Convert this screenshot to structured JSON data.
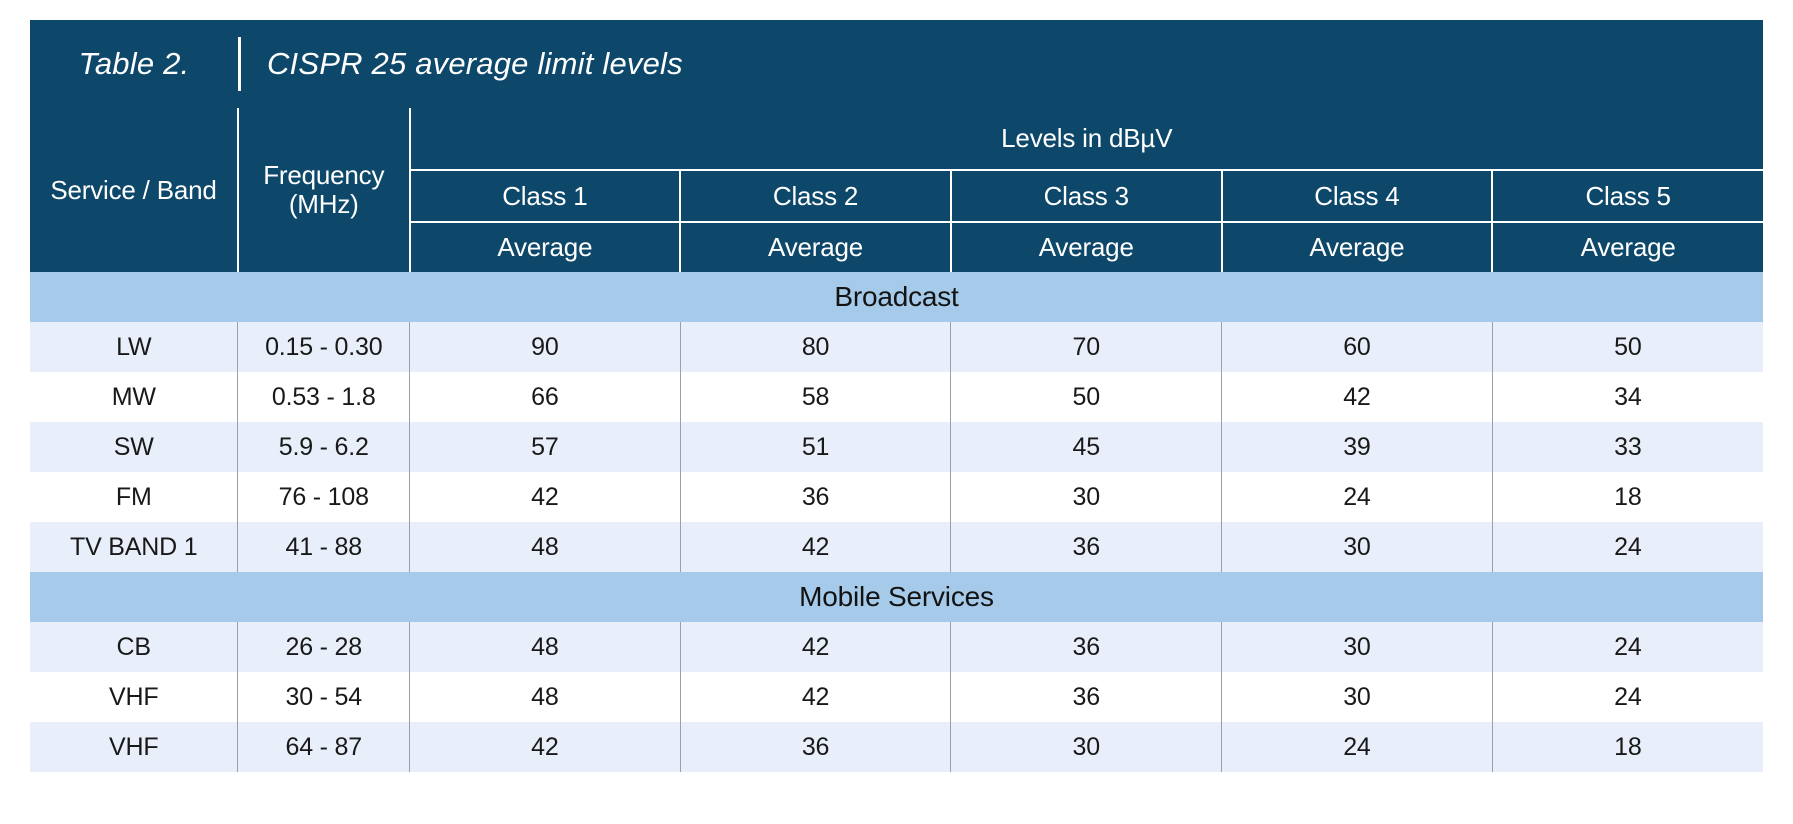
{
  "title": {
    "label": "Table 2.",
    "text": "CISPR 25 average limit levels"
  },
  "table": {
    "header": {
      "service_band": "Service / Band",
      "frequency": [
        "Frequency",
        "(MHz)"
      ],
      "levels_caption": "Levels in dBµV",
      "classes": [
        "Class 1",
        "Class 2",
        "Class 3",
        "Class 4",
        "Class 5"
      ],
      "class_subheader": "Average"
    },
    "sections": [
      {
        "name": "Broadcast",
        "rows": [
          {
            "band": "LW",
            "frequency_mhz": "0.15 - 0.30",
            "values": [
              "90",
              "80",
              "70",
              "60",
              "50"
            ]
          },
          {
            "band": "MW",
            "frequency_mhz": "0.53 - 1.8",
            "values": [
              "66",
              "58",
              "50",
              "42",
              "34"
            ]
          },
          {
            "band": "SW",
            "frequency_mhz": "5.9 - 6.2",
            "values": [
              "57",
              "51",
              "45",
              "39",
              "33"
            ]
          },
          {
            "band": "FM",
            "frequency_mhz": "76 - 108",
            "values": [
              "42",
              "36",
              "30",
              "24",
              "18"
            ]
          },
          {
            "band": "TV BAND 1",
            "frequency_mhz": "41 - 88",
            "values": [
              "48",
              "42",
              "36",
              "30",
              "24"
            ]
          }
        ]
      },
      {
        "name": "Mobile Services",
        "rows": [
          {
            "band": "CB",
            "frequency_mhz": "26 - 28",
            "values": [
              "48",
              "42",
              "36",
              "30",
              "24"
            ]
          },
          {
            "band": "VHF",
            "frequency_mhz": "30 - 54",
            "values": [
              "48",
              "42",
              "36",
              "30",
              "24"
            ]
          },
          {
            "band": "VHF",
            "frequency_mhz": "64 - 87",
            "values": [
              "42",
              "36",
              "30",
              "24",
              "18"
            ]
          }
        ]
      }
    ]
  },
  "colors": {
    "header_navy": "#0d486b",
    "section_band_blue": "#a6cbea",
    "row_tint_blue": "#e9effa",
    "row_white": "#ffffff",
    "header_text": "#ffffff",
    "body_text": "#191919",
    "column_divider_gray": "#9aa0a9"
  }
}
